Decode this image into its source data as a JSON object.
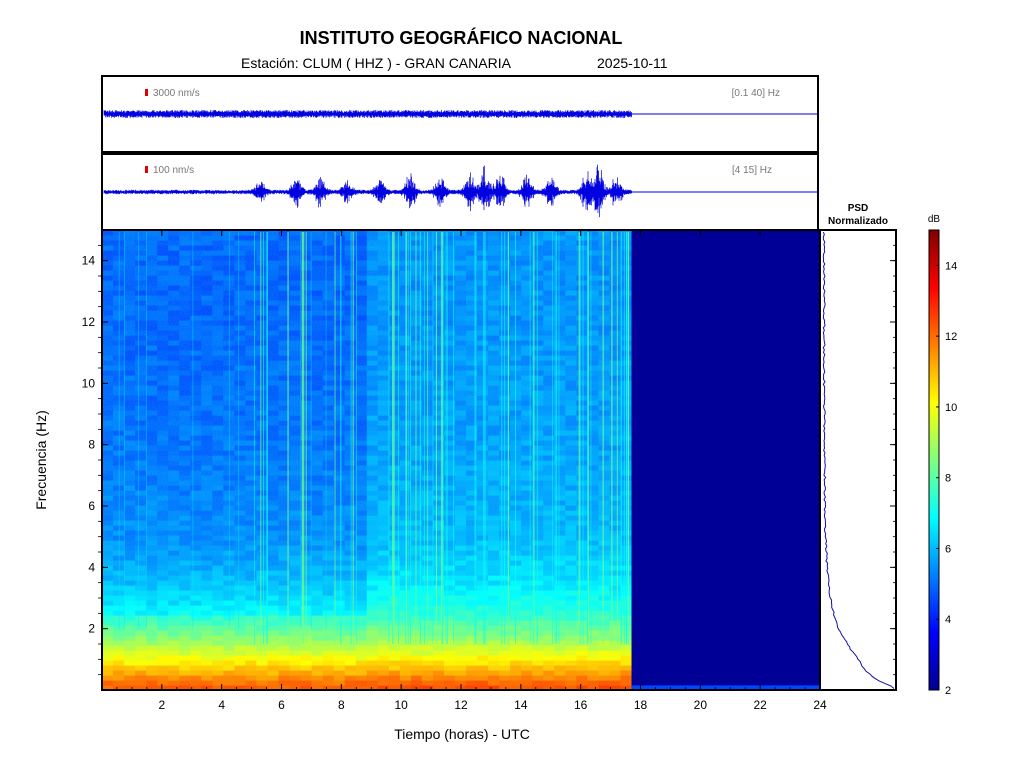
{
  "header": {
    "title": "INSTITUTO GEOGRÁFICO NACIONAL",
    "station": "Estación:  CLUM ( HHZ ) - GRAN CANARIA",
    "date": "2025-10-11"
  },
  "chart_data": [
    {
      "type": "line",
      "title": "",
      "description_label": "seismogram-broadband",
      "scale_label": "3000 nm/s",
      "filter_label": "[0.1 40] Hz",
      "x_range_hours": [
        0,
        24
      ],
      "data_end_hours": 17.7,
      "amplitude_profile": "uniform low-amplitude noise band"
    },
    {
      "type": "line",
      "title": "",
      "description_label": "seismogram-filtered",
      "scale_label": "100 nm/s",
      "filter_label": "[4 15] Hz",
      "x_range_hours": [
        0,
        24
      ],
      "data_end_hours": 17.7,
      "bursts": [
        {
          "t": 5.3,
          "amp": 0.35
        },
        {
          "t": 6.5,
          "amp": 0.5
        },
        {
          "t": 7.3,
          "amp": 0.45
        },
        {
          "t": 8.2,
          "amp": 0.35
        },
        {
          "t": 9.3,
          "amp": 0.4
        },
        {
          "t": 10.3,
          "amp": 0.55
        },
        {
          "t": 11.3,
          "amp": 0.55
        },
        {
          "t": 12.3,
          "amp": 0.65
        },
        {
          "t": 12.8,
          "amp": 0.85
        },
        {
          "t": 13.3,
          "amp": 0.7
        },
        {
          "t": 14.2,
          "amp": 0.55
        },
        {
          "t": 15.0,
          "amp": 0.5
        },
        {
          "t": 16.2,
          "amp": 0.75
        },
        {
          "t": 16.6,
          "amp": 0.95
        },
        {
          "t": 17.2,
          "amp": 0.5
        }
      ]
    },
    {
      "type": "heatmap",
      "title": "",
      "xlabel": "Tiempo (horas) - UTC",
      "ylabel": "Frecuencia  (Hz)",
      "xlim": [
        0,
        24
      ],
      "ylim": [
        0,
        15
      ],
      "x_ticks": [
        2,
        4,
        6,
        8,
        10,
        12,
        14,
        16,
        18,
        20,
        22,
        24
      ],
      "y_ticks": [
        2,
        4,
        6,
        8,
        10,
        12,
        14
      ],
      "data_end_hours": 17.7,
      "colorbar": {
        "label": "dB",
        "range": [
          2,
          15
        ],
        "ticks": [
          2,
          4,
          6,
          8,
          10,
          12,
          14
        ],
        "colormap": "jet"
      },
      "level_by_frequency_db": [
        {
          "f": 0.0,
          "db": 12.5
        },
        {
          "f": 0.3,
          "db": 12.0
        },
        {
          "f": 0.7,
          "db": 11.0
        },
        {
          "f": 1.2,
          "db": 9.8
        },
        {
          "f": 1.8,
          "db": 8.6
        },
        {
          "f": 2.5,
          "db": 7.4
        },
        {
          "f": 3.5,
          "db": 6.6
        },
        {
          "f": 5.0,
          "db": 6.0
        },
        {
          "f": 8.0,
          "db": 5.7
        },
        {
          "f": 12.0,
          "db": 5.5
        },
        {
          "f": 15.0,
          "db": 5.5
        }
      ],
      "quiet_period_hours": [
        0,
        8.5
      ],
      "no_data_level_db": 2.3
    },
    {
      "type": "line",
      "title": "PSD\nNormalizado",
      "title_line1": "PSD",
      "title_line2": "Normalizado",
      "description_label": "normalized-psd-profile",
      "ylim": [
        0,
        15
      ],
      "points": [
        {
          "f": 0.1,
          "v": 1.0
        },
        {
          "f": 0.3,
          "v": 0.78
        },
        {
          "f": 0.6,
          "v": 0.62
        },
        {
          "f": 1.0,
          "v": 0.5
        },
        {
          "f": 1.5,
          "v": 0.35
        },
        {
          "f": 2.0,
          "v": 0.22
        },
        {
          "f": 2.5,
          "v": 0.16
        },
        {
          "f": 3.0,
          "v": 0.12
        },
        {
          "f": 3.5,
          "v": 0.09
        },
        {
          "f": 4.0,
          "v": 0.07
        },
        {
          "f": 5.0,
          "v": 0.05
        },
        {
          "f": 6.0,
          "v": 0.04
        },
        {
          "f": 8.0,
          "v": 0.035
        },
        {
          "f": 10.0,
          "v": 0.03
        },
        {
          "f": 12.0,
          "v": 0.03
        },
        {
          "f": 15.0,
          "v": 0.03
        }
      ]
    }
  ]
}
